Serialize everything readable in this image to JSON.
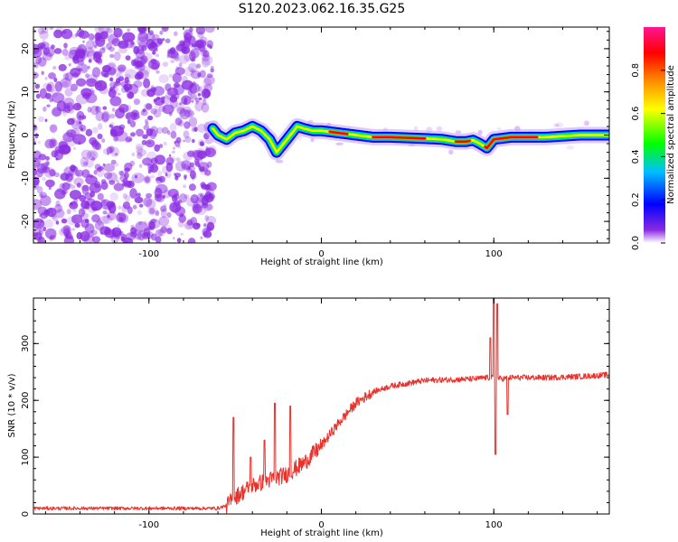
{
  "title": "S120.2023.062.16.35.G25",
  "chart_data": [
    {
      "type": "heatmap",
      "xlabel": "Height of straight line (km)",
      "ylabel": "Frequency (Hz)",
      "xlim": [
        -167,
        167
      ],
      "ylim": [
        -25,
        25
      ],
      "x_ticks": [
        -100,
        0,
        100
      ],
      "y_ticks": [
        -20,
        -10,
        0,
        10,
        20
      ],
      "noise_region_x": [
        -167,
        -63
      ],
      "ridge": {
        "x": [
          -63,
          -60,
          -55,
          -50,
          -45,
          -40,
          -35,
          -30,
          -26,
          -24,
          -22,
          -18,
          -14,
          -10,
          -5,
          0,
          10,
          20,
          30,
          40,
          60,
          70,
          78,
          84,
          88,
          92,
          96,
          100,
          110,
          130,
          150,
          167
        ],
        "y": [
          1.5,
          0,
          -1,
          0.5,
          1,
          2,
          1,
          -1,
          -4,
          -3,
          -2,
          0,
          2,
          1.5,
          1,
          1,
          0.5,
          0,
          -0.5,
          -0.5,
          -0.8,
          -1,
          -1.5,
          -1.5,
          -1.2,
          -2,
          -3,
          -1,
          -0.5,
          -0.5,
          0,
          0
        ]
      },
      "colorbar": {
        "label": "Normalized spectral amplitude",
        "ticks": [
          0.0,
          0.2,
          0.4,
          0.6,
          0.8
        ],
        "range": [
          0,
          1
        ],
        "colors": [
          "#ffffff",
          "#8a2be2",
          "#0000ff",
          "#00bfff",
          "#00ff00",
          "#ffff00",
          "#ff8c00",
          "#ff0000",
          "#ff1493"
        ]
      },
      "noise_color": "#8a2be2"
    },
    {
      "type": "line",
      "xlabel": "Height of straight line (km)",
      "ylabel": "SNR (10 * v/v)",
      "xlim": [
        -167,
        167
      ],
      "ylim": [
        0,
        380
      ],
      "x_ticks": [
        -100,
        0,
        100
      ],
      "y_ticks": [
        0,
        100,
        200,
        300
      ],
      "color": "#e8322c",
      "trend": {
        "x": [
          -167,
          -60,
          -55,
          -50,
          -40,
          -30,
          -20,
          -10,
          0,
          10,
          20,
          30,
          40,
          60,
          90,
          95,
          100,
          105,
          110,
          130,
          150,
          167
        ],
        "y": [
          10,
          10,
          15,
          30,
          50,
          60,
          70,
          90,
          120,
          160,
          195,
          215,
          225,
          235,
          238,
          240,
          240,
          238,
          240,
          240,
          242,
          245
        ]
      },
      "spikes": [
        {
          "x": -51,
          "y": 170
        },
        {
          "x": -41,
          "y": 100
        },
        {
          "x": -33,
          "y": 130
        },
        {
          "x": -27,
          "y": 195
        },
        {
          "x": -18,
          "y": 190
        },
        {
          "x": 98,
          "y": 310
        },
        {
          "x": 100,
          "y": 380
        },
        {
          "x": 101,
          "y": 105
        },
        {
          "x": 102,
          "y": 370
        },
        {
          "x": 108,
          "y": 175
        }
      ]
    }
  ]
}
